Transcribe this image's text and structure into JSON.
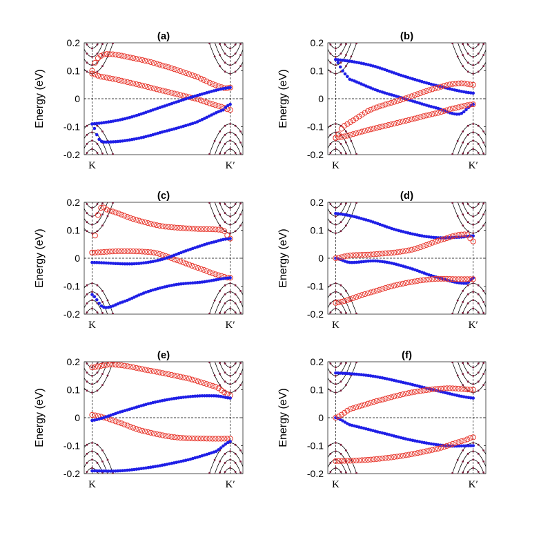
{
  "chart_data": [
    {
      "type": "scatter",
      "title": "(a)",
      "ylabel": "Energy (eV)",
      "ylim": [
        -0.2,
        0.2
      ],
      "yticks": [
        "0.2",
        "0.1",
        "0",
        "-0.1",
        "-0.2"
      ],
      "xtick_labels": [
        "K",
        "K′"
      ],
      "series": [
        {
          "color": "#e8392f",
          "marker": "open-circle",
          "values": [
            [
              0.0,
              0.09
            ],
            [
              0.05,
              0.08
            ],
            [
              0.25,
              0.06
            ],
            [
              0.5,
              0.03
            ],
            [
              0.75,
              0.0
            ],
            [
              0.95,
              -0.03
            ],
            [
              1.0,
              -0.04
            ]
          ]
        },
        {
          "color": "#e8392f",
          "marker": "open-circle",
          "values": [
            [
              0.0,
              0.1
            ],
            [
              0.03,
              0.14
            ],
            [
              0.1,
              0.16
            ],
            [
              0.3,
              0.145
            ],
            [
              0.5,
              0.12
            ],
            [
              0.75,
              0.08
            ],
            [
              0.95,
              0.04
            ],
            [
              1.0,
              0.04
            ]
          ]
        },
        {
          "color": "#1f1fe6",
          "marker": "filled-circle",
          "values": [
            [
              0.0,
              -0.09
            ],
            [
              0.25,
              -0.07
            ],
            [
              0.5,
              -0.03
            ],
            [
              0.75,
              0.01
            ],
            [
              1.0,
              0.04
            ]
          ]
        },
        {
          "color": "#1f1fe6",
          "marker": "filled-circle",
          "values": [
            [
              0.0,
              -0.09
            ],
            [
              0.05,
              -0.145
            ],
            [
              0.1,
              -0.155
            ],
            [
              0.3,
              -0.145
            ],
            [
              0.5,
              -0.12
            ],
            [
              0.75,
              -0.085
            ],
            [
              0.95,
              -0.04
            ],
            [
              1.0,
              -0.02
            ]
          ]
        }
      ]
    },
    {
      "type": "scatter",
      "title": "(b)",
      "ylabel": "Energy (eV)",
      "ylim": [
        -0.2,
        0.2
      ],
      "yticks": [
        "0.2",
        "0.1",
        "0",
        "-0.1",
        "-0.2"
      ],
      "xtick_labels": [
        "K",
        "K′"
      ],
      "series": [
        {
          "color": "#1f1fe6",
          "marker": "filled-circle",
          "values": [
            [
              0.0,
              0.14
            ],
            [
              0.25,
              0.12
            ],
            [
              0.5,
              0.08
            ],
            [
              0.75,
              0.045
            ],
            [
              1.0,
              0.02
            ]
          ]
        },
        {
          "color": "#1f1fe6",
          "marker": "filled-circle",
          "values": [
            [
              0.0,
              0.14
            ],
            [
              0.05,
              0.1
            ],
            [
              0.1,
              0.07
            ],
            [
              0.3,
              0.03
            ],
            [
              0.5,
              0.0
            ],
            [
              0.75,
              -0.035
            ],
            [
              0.9,
              -0.055
            ],
            [
              1.0,
              -0.02
            ]
          ]
        },
        {
          "color": "#e8392f",
          "marker": "open-circle",
          "values": [
            [
              0.0,
              -0.14
            ],
            [
              0.05,
              -0.1
            ],
            [
              0.25,
              -0.04
            ],
            [
              0.5,
              0.0
            ],
            [
              0.75,
              0.04
            ],
            [
              0.9,
              0.055
            ],
            [
              1.0,
              0.05
            ]
          ]
        },
        {
          "color": "#e8392f",
          "marker": "open-circle",
          "values": [
            [
              0.0,
              -0.14
            ],
            [
              0.25,
              -0.11
            ],
            [
              0.5,
              -0.08
            ],
            [
              0.75,
              -0.05
            ],
            [
              0.9,
              -0.03
            ],
            [
              1.0,
              -0.02
            ]
          ]
        }
      ]
    },
    {
      "type": "scatter",
      "title": "(c)",
      "ylabel": "Energy (eV)",
      "ylim": [
        -0.2,
        0.2
      ],
      "yticks": [
        "0.2",
        "0.1",
        "0",
        "-0.1",
        "-0.2"
      ],
      "xtick_labels": [
        "K",
        "K′"
      ],
      "series": [
        {
          "color": "#e8392f",
          "marker": "open-circle",
          "values": [
            [
              0.0,
              0.02
            ],
            [
              0.05,
              0.17
            ],
            [
              0.12,
              0.17
            ],
            [
              0.3,
              0.14
            ],
            [
              0.5,
              0.115
            ],
            [
              0.75,
              0.105
            ],
            [
              0.95,
              0.1
            ],
            [
              1.0,
              0.07
            ]
          ]
        },
        {
          "color": "#e8392f",
          "marker": "open-circle",
          "values": [
            [
              0.0,
              0.02
            ],
            [
              0.2,
              0.025
            ],
            [
              0.45,
              0.02
            ],
            [
              0.6,
              -0.005
            ],
            [
              0.8,
              -0.04
            ],
            [
              0.95,
              -0.065
            ],
            [
              1.0,
              -0.07
            ]
          ]
        },
        {
          "color": "#1f1fe6",
          "marker": "filled-circle",
          "values": [
            [
              0.0,
              -0.015
            ],
            [
              0.3,
              -0.02
            ],
            [
              0.5,
              -0.005
            ],
            [
              0.7,
              0.03
            ],
            [
              0.9,
              0.06
            ],
            [
              1.0,
              0.07
            ]
          ]
        },
        {
          "color": "#1f1fe6",
          "marker": "filled-circle",
          "values": [
            [
              0.0,
              -0.13
            ],
            [
              0.08,
              -0.175
            ],
            [
              0.2,
              -0.16
            ],
            [
              0.4,
              -0.12
            ],
            [
              0.6,
              -0.095
            ],
            [
              0.8,
              -0.085
            ],
            [
              1.0,
              -0.07
            ]
          ]
        }
      ]
    },
    {
      "type": "scatter",
      "title": "(d)",
      "ylabel": "Energy (eV)",
      "ylim": [
        -0.2,
        0.2
      ],
      "yticks": [
        "0.2",
        "0.1",
        "0",
        "-0.1",
        "-0.2"
      ],
      "xtick_labels": [
        "K",
        "K′"
      ],
      "series": [
        {
          "color": "#1f1fe6",
          "marker": "filled-circle",
          "values": [
            [
              0.0,
              0.16
            ],
            [
              0.2,
              0.14
            ],
            [
              0.45,
              0.1
            ],
            [
              0.7,
              0.075
            ],
            [
              0.9,
              0.075
            ],
            [
              1.0,
              0.08
            ]
          ]
        },
        {
          "color": "#1f1fe6",
          "marker": "filled-circle",
          "values": [
            [
              0.0,
              0.0
            ],
            [
              0.1,
              -0.015
            ],
            [
              0.3,
              -0.01
            ],
            [
              0.5,
              -0.03
            ],
            [
              0.75,
              -0.07
            ],
            [
              0.95,
              -0.09
            ],
            [
              1.0,
              -0.07
            ]
          ]
        },
        {
          "color": "#e8392f",
          "marker": "open-circle",
          "values": [
            [
              0.0,
              0.0
            ],
            [
              0.1,
              0.01
            ],
            [
              0.3,
              0.015
            ],
            [
              0.55,
              0.03
            ],
            [
              0.8,
              0.07
            ],
            [
              0.95,
              0.085
            ],
            [
              1.0,
              0.06
            ]
          ]
        },
        {
          "color": "#e8392f",
          "marker": "open-circle",
          "values": [
            [
              0.0,
              -0.16
            ],
            [
              0.2,
              -0.13
            ],
            [
              0.45,
              -0.095
            ],
            [
              0.7,
              -0.075
            ],
            [
              0.9,
              -0.075
            ],
            [
              1.0,
              -0.075
            ]
          ]
        }
      ]
    },
    {
      "type": "scatter",
      "title": "(e)",
      "ylabel": "Energy (eV)",
      "ylim": [
        -0.2,
        0.2
      ],
      "yticks": [
        "0.2",
        "0.1",
        "0",
        "-0.1",
        "-0.2"
      ],
      "xtick_labels": [
        "K",
        "K′"
      ],
      "series": [
        {
          "color": "#e8392f",
          "marker": "open-circle",
          "values": [
            [
              0.0,
              0.18
            ],
            [
              0.15,
              0.19
            ],
            [
              0.4,
              0.17
            ],
            [
              0.7,
              0.14
            ],
            [
              0.9,
              0.11
            ],
            [
              1.0,
              0.08
            ]
          ]
        },
        {
          "color": "#e8392f",
          "marker": "open-circle",
          "values": [
            [
              0.0,
              0.01
            ],
            [
              0.15,
              -0.01
            ],
            [
              0.35,
              -0.045
            ],
            [
              0.6,
              -0.07
            ],
            [
              0.85,
              -0.075
            ],
            [
              1.0,
              -0.075
            ]
          ]
        },
        {
          "color": "#1f1fe6",
          "marker": "filled-circle",
          "values": [
            [
              0.0,
              -0.01
            ],
            [
              0.2,
              0.02
            ],
            [
              0.45,
              0.055
            ],
            [
              0.7,
              0.075
            ],
            [
              0.9,
              0.078
            ],
            [
              1.0,
              0.07
            ]
          ]
        },
        {
          "color": "#1f1fe6",
          "marker": "filled-circle",
          "values": [
            [
              0.0,
              -0.19
            ],
            [
              0.2,
              -0.19
            ],
            [
              0.45,
              -0.175
            ],
            [
              0.7,
              -0.15
            ],
            [
              0.9,
              -0.12
            ],
            [
              1.0,
              -0.085
            ]
          ]
        }
      ]
    },
    {
      "type": "scatter",
      "title": "(f)",
      "ylabel": "Energy (eV)",
      "ylim": [
        -0.2,
        0.2
      ],
      "yticks": [
        "0.2",
        "0.1",
        "0",
        "-0.1",
        "-0.2"
      ],
      "xtick_labels": [
        "K",
        "K′"
      ],
      "series": [
        {
          "color": "#1f1fe6",
          "marker": "filled-circle",
          "values": [
            [
              0.0,
              0.16
            ],
            [
              0.25,
              0.15
            ],
            [
              0.5,
              0.125
            ],
            [
              0.75,
              0.095
            ],
            [
              1.0,
              0.07
            ]
          ]
        },
        {
          "color": "#1f1fe6",
          "marker": "filled-circle",
          "values": [
            [
              0.0,
              0.0
            ],
            [
              0.1,
              -0.025
            ],
            [
              0.3,
              -0.05
            ],
            [
              0.55,
              -0.08
            ],
            [
              0.8,
              -0.1
            ],
            [
              1.0,
              -0.1
            ]
          ]
        },
        {
          "color": "#e8392f",
          "marker": "open-circle",
          "values": [
            [
              0.0,
              0.0
            ],
            [
              0.1,
              0.03
            ],
            [
              0.3,
              0.06
            ],
            [
              0.55,
              0.09
            ],
            [
              0.8,
              0.105
            ],
            [
              1.0,
              0.1
            ]
          ]
        },
        {
          "color": "#e8392f",
          "marker": "open-circle",
          "values": [
            [
              0.0,
              -0.155
            ],
            [
              0.25,
              -0.15
            ],
            [
              0.5,
              -0.135
            ],
            [
              0.75,
              -0.11
            ],
            [
              0.95,
              -0.08
            ],
            [
              1.0,
              -0.07
            ]
          ]
        }
      ]
    }
  ]
}
